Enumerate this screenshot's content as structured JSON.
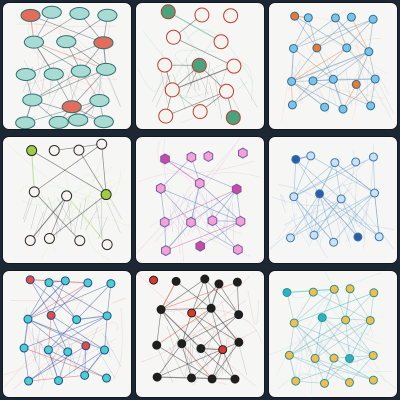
{
  "grid": {
    "background": "#1d2733",
    "tile_background": "#f6f7f5",
    "tiles": [
      {
        "index": 0,
        "palette": {
          "node_fill": "#a8dcd3",
          "node_stroke": "#2f6f73",
          "edge": "#3a4a5a",
          "accent": "#e26d5a"
        }
      },
      {
        "index": 1,
        "palette": {
          "node_fill": "#f7f4ef",
          "node_stroke": "#c23b2f",
          "edge": "#2d2d2d",
          "accent": "#4aa37c"
        }
      },
      {
        "index": 2,
        "palette": {
          "node_fill": "#7cc3e8",
          "node_stroke": "#2b6f9a",
          "edge": "#6b8fb3",
          "accent": "#f07a2b"
        }
      },
      {
        "index": 3,
        "palette": {
          "node_fill": "#f7f4ef",
          "node_stroke": "#2b2b2b",
          "edge": "#2b2b2b",
          "accent": "#9ccf3f"
        }
      },
      {
        "index": 4,
        "palette": {
          "node_fill": "#f2a3d3",
          "node_stroke": "#7a56b0",
          "edge": "#5d79b8",
          "accent": "#c94aa3"
        }
      },
      {
        "index": 5,
        "palette": {
          "node_fill": "#c9e2f4",
          "node_stroke": "#3b74b3",
          "edge": "#6aa0d2",
          "accent": "#2b5ea8"
        }
      },
      {
        "index": 6,
        "palette": {
          "node_fill": "#4ad0c7",
          "node_stroke": "#1f4aa8",
          "edge": "#2f4d9b",
          "accent": "#e64b3c"
        }
      },
      {
        "index": 7,
        "palette": {
          "node_fill": "#1f1f1f",
          "node_stroke": "#1f1f1f",
          "edge": "#2b2b2b",
          "accent": "#d93a2b"
        }
      },
      {
        "index": 8,
        "palette": {
          "node_fill": "#f2c04a",
          "node_stroke": "#2d8f92",
          "edge": "#7bb7c7",
          "accent": "#2bb3c1"
        }
      }
    ]
  }
}
